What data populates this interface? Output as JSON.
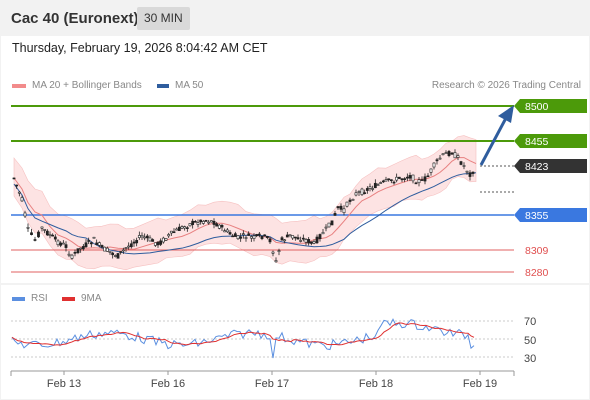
{
  "header": {
    "title": "Cac 40 (Euronext)",
    "timeframe": "30 MIN"
  },
  "timestamp": "Thursday, February 19, 2026 8:04:42 AM CET",
  "legend": {
    "items": [
      {
        "label": "MA 20 + Bollinger Bands",
        "color": "#f28b8b"
      },
      {
        "label": "MA 50",
        "color": "#2f5d9e"
      }
    ],
    "credit": "Research © 2026 Trading Central"
  },
  "price_levels": [
    {
      "label": "8500",
      "color": "#4c9a0a",
      "kind": "resistance"
    },
    {
      "label": "8455",
      "color": "#4c9a0a",
      "kind": "resistance"
    },
    {
      "label": "8423",
      "color": "#333333",
      "kind": "last"
    },
    {
      "label": "8355",
      "color": "#3a78e0",
      "kind": "pivot"
    },
    {
      "label": "8309",
      "color": "#e05050",
      "kind": "support"
    },
    {
      "label": "8280",
      "color": "#e05050",
      "kind": "support"
    }
  ],
  "rsi_panel": {
    "legend": [
      {
        "label": "RSI",
        "color": "#5b8fe0"
      },
      {
        "label": "9MA",
        "color": "#e03030"
      }
    ],
    "levels": [
      "70",
      "50",
      "30"
    ]
  },
  "x_axis": {
    "labels": [
      "Feb 13",
      "Feb 16",
      "Feb 17",
      "Feb 18",
      "Feb 19"
    ]
  },
  "colors": {
    "bullish": "#4c9a0a",
    "bearish": "#e05050",
    "pivot": "#3a78e0",
    "arrow": "#2f5d9e",
    "candle": "#222222"
  }
}
